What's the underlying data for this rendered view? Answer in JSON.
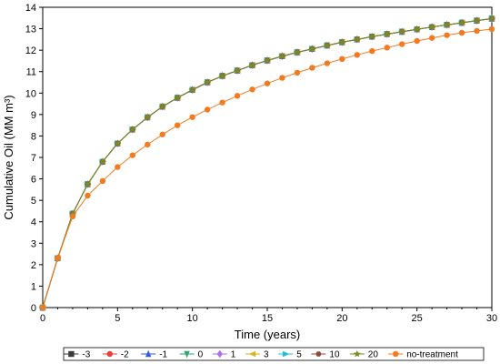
{
  "chart_data": {
    "type": "line",
    "title": "",
    "xlabel": "Time (years)",
    "ylabel": "Cumulative Oil (MM m³)",
    "xlim": [
      0,
      30
    ],
    "ylim": [
      0,
      14
    ],
    "xticks": [
      0,
      5,
      10,
      15,
      20,
      25,
      30
    ],
    "yticks": [
      0,
      1,
      2,
      3,
      4,
      5,
      6,
      7,
      8,
      9,
      10,
      11,
      12,
      13,
      14
    ],
    "grid": false,
    "legend_position": "bottom",
    "x": [
      0,
      1,
      2,
      3,
      4,
      5,
      6,
      7,
      8,
      9,
      10,
      11,
      12,
      13,
      14,
      15,
      16,
      17,
      18,
      19,
      20,
      21,
      22,
      23,
      24,
      25,
      26,
      27,
      28,
      29,
      30
    ],
    "series": [
      {
        "name": "-3",
        "color": "#3a3a3a",
        "marker": "square",
        "values": [
          0,
          2.3,
          4.38,
          5.75,
          6.8,
          7.65,
          8.3,
          8.87,
          9.37,
          9.78,
          10.15,
          10.5,
          10.8,
          11.05,
          11.3,
          11.52,
          11.72,
          11.9,
          12.06,
          12.22,
          12.37,
          12.5,
          12.63,
          12.75,
          12.86,
          12.97,
          13.08,
          13.18,
          13.28,
          13.38,
          13.47
        ]
      },
      {
        "name": "-2",
        "color": "#e8413c",
        "marker": "circle",
        "values": [
          0,
          2.3,
          4.38,
          5.75,
          6.8,
          7.65,
          8.3,
          8.87,
          9.37,
          9.78,
          10.15,
          10.5,
          10.8,
          11.05,
          11.3,
          11.52,
          11.72,
          11.9,
          12.06,
          12.22,
          12.37,
          12.5,
          12.63,
          12.75,
          12.86,
          12.97,
          13.08,
          13.18,
          13.28,
          13.38,
          13.47
        ]
      },
      {
        "name": "-1",
        "color": "#2f5ed8",
        "marker": "triangle-up",
        "values": [
          0,
          2.3,
          4.38,
          5.75,
          6.8,
          7.65,
          8.3,
          8.87,
          9.37,
          9.78,
          10.15,
          10.5,
          10.8,
          11.05,
          11.3,
          11.52,
          11.72,
          11.9,
          12.06,
          12.22,
          12.37,
          12.5,
          12.63,
          12.75,
          12.86,
          12.97,
          13.08,
          13.18,
          13.28,
          13.38,
          13.47
        ]
      },
      {
        "name": "0",
        "color": "#2ea86a",
        "marker": "triangle-down",
        "values": [
          0,
          2.3,
          4.38,
          5.75,
          6.8,
          7.65,
          8.3,
          8.87,
          9.37,
          9.78,
          10.15,
          10.5,
          10.8,
          11.05,
          11.3,
          11.52,
          11.72,
          11.9,
          12.06,
          12.22,
          12.37,
          12.5,
          12.63,
          12.75,
          12.86,
          12.97,
          13.08,
          13.18,
          13.28,
          13.38,
          13.47
        ]
      },
      {
        "name": "1",
        "color": "#a873e8",
        "marker": "diamond",
        "values": [
          0,
          2.3,
          4.38,
          5.75,
          6.8,
          7.65,
          8.3,
          8.87,
          9.37,
          9.78,
          10.15,
          10.5,
          10.8,
          11.05,
          11.3,
          11.52,
          11.72,
          11.9,
          12.06,
          12.22,
          12.37,
          12.5,
          12.63,
          12.75,
          12.86,
          12.97,
          13.08,
          13.18,
          13.28,
          13.38,
          13.47
        ]
      },
      {
        "name": "3",
        "color": "#d6b21e",
        "marker": "triangle-left",
        "values": [
          0,
          2.3,
          4.38,
          5.75,
          6.8,
          7.65,
          8.3,
          8.87,
          9.37,
          9.78,
          10.15,
          10.5,
          10.8,
          11.05,
          11.3,
          11.52,
          11.72,
          11.9,
          12.06,
          12.22,
          12.37,
          12.5,
          12.63,
          12.75,
          12.86,
          12.97,
          13.08,
          13.18,
          13.28,
          13.38,
          13.47
        ]
      },
      {
        "name": "5",
        "color": "#22c1d6",
        "marker": "triangle-right",
        "values": [
          0,
          2.3,
          4.38,
          5.75,
          6.8,
          7.65,
          8.3,
          8.87,
          9.37,
          9.78,
          10.15,
          10.5,
          10.8,
          11.05,
          11.3,
          11.52,
          11.72,
          11.9,
          12.06,
          12.22,
          12.37,
          12.5,
          12.63,
          12.75,
          12.86,
          12.97,
          13.08,
          13.18,
          13.28,
          13.38,
          13.47
        ]
      },
      {
        "name": "10",
        "color": "#8a4a3a",
        "marker": "hexagon",
        "values": [
          0,
          2.3,
          4.38,
          5.75,
          6.8,
          7.65,
          8.3,
          8.87,
          9.37,
          9.78,
          10.15,
          10.5,
          10.8,
          11.05,
          11.3,
          11.52,
          11.72,
          11.9,
          12.06,
          12.22,
          12.37,
          12.5,
          12.63,
          12.75,
          12.86,
          12.97,
          13.08,
          13.18,
          13.28,
          13.38,
          13.47
        ]
      },
      {
        "name": "20",
        "color": "#7a8a2a",
        "marker": "star",
        "values": [
          0,
          2.3,
          4.38,
          5.75,
          6.8,
          7.65,
          8.3,
          8.87,
          9.37,
          9.78,
          10.15,
          10.5,
          10.8,
          11.05,
          11.3,
          11.52,
          11.72,
          11.9,
          12.06,
          12.22,
          12.37,
          12.5,
          12.63,
          12.75,
          12.86,
          12.97,
          13.08,
          13.18,
          13.28,
          13.38,
          13.47
        ]
      },
      {
        "name": "no-treatment",
        "color": "#f47a20",
        "marker": "circle",
        "values": [
          0,
          2.3,
          4.25,
          5.22,
          5.9,
          6.55,
          7.1,
          7.6,
          8.07,
          8.5,
          8.88,
          9.23,
          9.56,
          9.87,
          10.17,
          10.45,
          10.71,
          10.95,
          11.18,
          11.39,
          11.59,
          11.78,
          11.96,
          12.12,
          12.28,
          12.43,
          12.57,
          12.7,
          12.81,
          12.9,
          12.98
        ]
      }
    ]
  }
}
